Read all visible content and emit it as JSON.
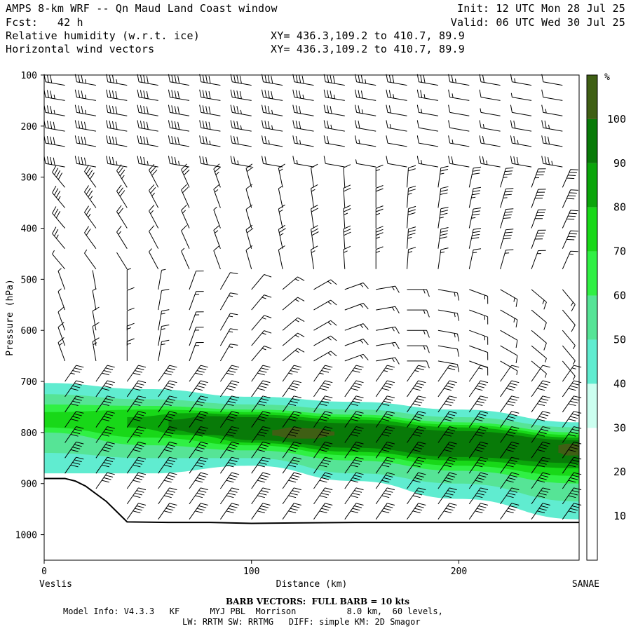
{
  "header": {
    "title": "AMPS 8-km WRF -- Qn Maud Land Coast window",
    "forecast": "Fcst:   42 h",
    "init": "Init: 12 UTC Mon 28 Jul 25",
    "valid": "Valid: 06 UTC Wed 30 Jul 25",
    "field1": "Relative humidity (w.r.t. ice)",
    "field2": "Horizontal wind vectors",
    "xy1": "XY= 436.3,109.2 to 410.7, 89.9",
    "xy2": "XY= 436.3,109.2 to 410.7, 89.9"
  },
  "footer": {
    "barb_note": "BARB VECTORS:  FULL BARB = 10 kts",
    "model_info": "Model Info: V4.3.3   KF      MYJ PBL  Morrison          8.0 km,  60 levels,",
    "physics": "LW: RRTM SW: RRTMG   DIFF: simple KM: 2D Smagor"
  },
  "chart_data": {
    "type": "heatmap",
    "title": "Relative humidity (w.r.t. ice)",
    "xlabel": "Distance (km)",
    "ylabel": "Pressure (hPa)",
    "x_start_label": "Veslis",
    "x_end_label": "SANAE",
    "xlim": [
      0,
      258
    ],
    "ylim": [
      1050,
      100
    ],
    "x_ticks": [
      0,
      100,
      200
    ],
    "y_ticks": [
      100,
      200,
      300,
      400,
      500,
      600,
      700,
      800,
      900,
      1000
    ],
    "colorbar": {
      "unit": "%",
      "levels": [
        10,
        20,
        30,
        40,
        50,
        60,
        70,
        80,
        90,
        100
      ],
      "colors": [
        "#ffffff",
        "#ffffff",
        "#ffffff",
        "#ccfff0",
        "#60ecd0",
        "#56e496",
        "#30f044",
        "#18d818",
        "#0aa50a",
        "#087a08",
        "#3f5f14"
      ]
    },
    "terrain_profile": {
      "x": [
        0,
        10,
        15,
        20,
        30,
        40,
        60,
        80,
        100,
        120,
        150,
        200,
        258
      ],
      "p": [
        890,
        890,
        895,
        905,
        935,
        975,
        976,
        976,
        978,
        977,
        976,
        976,
        976
      ]
    },
    "humidity_bands": [
      {
        "rh": 40,
        "x": [
          0,
          50,
          100,
          150,
          200,
          258
        ],
        "p_top": [
          703,
          715,
          730,
          740,
          755,
          780
        ],
        "p_bot": [
          880,
          880,
          865,
          895,
          930,
          970
        ]
      },
      {
        "rh": 50,
        "x": [
          0,
          50,
          100,
          150,
          200,
          258
        ],
        "p_top": [
          725,
          735,
          745,
          755,
          770,
          790
        ],
        "p_bot": [
          840,
          850,
          850,
          880,
          900,
          935
        ]
      },
      {
        "rh": 60,
        "x": [
          0,
          50,
          100,
          150,
          200,
          258
        ],
        "p_top": [
          745,
          748,
          755,
          765,
          780,
          800
        ],
        "p_bot": [
          800,
          825,
          835,
          855,
          875,
          900
        ]
      },
      {
        "rh": 70,
        "x": [
          0,
          50,
          100,
          150,
          200,
          258
        ],
        "p_top": [
          760,
          755,
          760,
          770,
          785,
          805
        ],
        "p_bot": [
          790,
          810,
          825,
          845,
          865,
          885
        ]
      },
      {
        "rh": 80,
        "x": [
          40,
          70,
          100,
          150,
          200,
          258
        ],
        "p_top": [
          770,
          762,
          765,
          775,
          790,
          810
        ],
        "p_bot": [
          790,
          805,
          820,
          838,
          855,
          870
        ]
      },
      {
        "rh": 90,
        "x": [
          60,
          80,
          100,
          150,
          200,
          258
        ],
        "p_top": [
          775,
          768,
          770,
          782,
          797,
          815
        ],
        "p_bot": [
          795,
          805,
          815,
          830,
          848,
          860
        ]
      },
      {
        "rh": 100,
        "x": [
          110,
          120,
          130,
          140
        ],
        "p_top": [
          795,
          790,
          792,
          798
        ],
        "p_bot": [
          806,
          812,
          812,
          806
        ]
      },
      {
        "rh": 100,
        "x": [
          248,
          252,
          258
        ],
        "p_top": [
          825,
          822,
          822
        ],
        "p_bot": [
          840,
          845,
          845
        ]
      }
    ],
    "wind_barbs": {
      "columns_km": [
        10,
        25,
        40,
        55,
        70,
        85,
        100,
        115,
        130,
        145,
        160,
        175,
        190,
        205,
        220,
        235,
        250
      ],
      "levels_hPa": [
        120,
        150,
        180,
        210,
        240,
        280,
        320,
        360,
        400,
        440,
        480,
        520,
        560,
        600,
        630,
        660,
        700,
        730,
        760,
        790,
        820,
        850,
        880,
        910,
        940,
        970
      ],
      "max_speed_kts": 45
    }
  }
}
